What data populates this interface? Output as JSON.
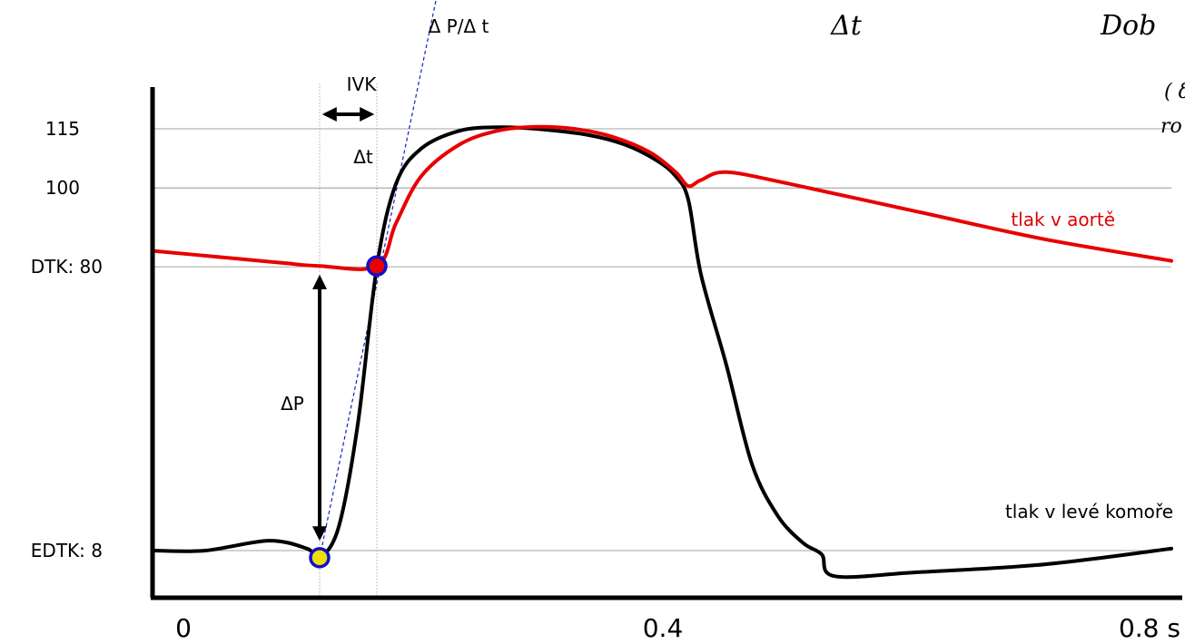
{
  "chart_data": {
    "type": "line",
    "xlabel": "s",
    "x_ticks": [
      "0",
      "0.4",
      "0.8 s"
    ],
    "x_tick_values": [
      0,
      0.4,
      0.8
    ],
    "xlim": [
      0,
      0.8
    ],
    "ylim": [
      0,
      125
    ],
    "y_ticks": [
      {
        "label": "115",
        "value": 115
      },
      {
        "label": "100",
        "value": 100
      },
      {
        "label": "DTK: 80",
        "value": 80
      },
      {
        "label": "EDTK: 8",
        "value": 8
      }
    ],
    "series": [
      {
        "name": "tlak v aortě",
        "color": "#e80000",
        "points": [
          [
            0.0,
            84
          ],
          [
            0.05,
            82.5
          ],
          [
            0.1,
            81
          ],
          [
            0.13,
            80.2
          ],
          [
            0.175,
            80.2
          ],
          [
            0.19,
            91
          ],
          [
            0.21,
            103
          ],
          [
            0.24,
            111
          ],
          [
            0.27,
            114.5
          ],
          [
            0.3,
            115.5
          ],
          [
            0.33,
            115
          ],
          [
            0.36,
            113
          ],
          [
            0.39,
            109
          ],
          [
            0.41,
            104
          ],
          [
            0.42,
            100.5
          ],
          [
            0.43,
            102
          ],
          [
            0.45,
            104
          ],
          [
            0.5,
            101
          ],
          [
            0.6,
            94
          ],
          [
            0.7,
            87
          ],
          [
            0.8,
            81.5
          ]
        ]
      },
      {
        "name": "tlak v levé komoře",
        "color": "#000000",
        "points": [
          [
            0.0,
            8
          ],
          [
            0.04,
            8
          ],
          [
            0.09,
            10.5
          ],
          [
            0.12,
            8.5
          ],
          [
            0.13,
            6.2
          ],
          [
            0.145,
            14
          ],
          [
            0.16,
            40
          ],
          [
            0.175,
            80
          ],
          [
            0.19,
            101
          ],
          [
            0.21,
            110
          ],
          [
            0.24,
            114.5
          ],
          [
            0.27,
            115.4
          ],
          [
            0.3,
            115
          ],
          [
            0.34,
            113.5
          ],
          [
            0.37,
            111
          ],
          [
            0.395,
            107
          ],
          [
            0.41,
            103
          ],
          [
            0.42,
            97
          ],
          [
            0.43,
            78
          ],
          [
            0.45,
            55
          ],
          [
            0.47,
            30
          ],
          [
            0.49,
            17
          ],
          [
            0.51,
            10
          ],
          [
            0.525,
            7
          ],
          [
            0.535,
            1.5
          ],
          [
            0.6,
            2.5
          ],
          [
            0.7,
            4.5
          ],
          [
            0.8,
            8.5
          ]
        ]
      }
    ],
    "markers": [
      {
        "x": 0.13,
        "y": 6.2,
        "fill": "#f0e000",
        "stroke": "#1010cc"
      },
      {
        "x": 0.175,
        "y": 80.2,
        "fill": "#e80000",
        "stroke": "#1010cc"
      }
    ],
    "reference_lines": [
      115,
      100,
      80,
      8
    ],
    "vertical_guides": [
      0.13,
      0.175
    ],
    "tangent_line": {
      "from": [
        0.13,
        6.2
      ],
      "to": [
        0.225,
        153
      ],
      "color": "#1020c0"
    },
    "annotations": {
      "slope": "Δ P/Δ t",
      "ivk": "IVK",
      "delta_t": "Δt",
      "delta_p": "ΔP",
      "aorta_label": "tlak v aortě",
      "ventricle_label": "tlak v levé komoře",
      "top_math_1": "Δt",
      "top_math_2": "Dob",
      "side_note_1": "( δ",
      "side_note_2": "ro"
    }
  }
}
